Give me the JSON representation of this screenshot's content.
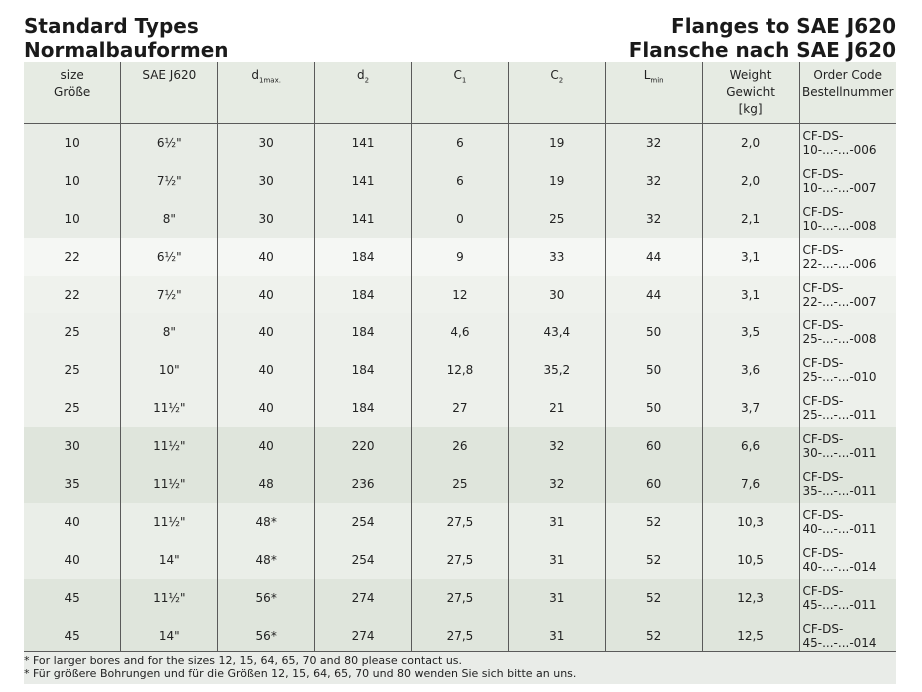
{
  "header": {
    "title_left": [
      "Standard Types",
      "Normalbauformen"
    ],
    "title_right": [
      "Flanges to SAE J620",
      "Flansche nach SAE J620"
    ]
  },
  "table": {
    "columns": [
      {
        "lines": [
          "size",
          "Größe"
        ]
      },
      {
        "lines": [
          "SAE J620"
        ]
      },
      {
        "symbol": "d",
        "subscript": "1max."
      },
      {
        "symbol": "d",
        "subscript": "2"
      },
      {
        "symbol": "C",
        "subscript": "1"
      },
      {
        "symbol": "C",
        "subscript": "2"
      },
      {
        "symbol": "L",
        "subscript": "min"
      },
      {
        "lines": [
          "Weight",
          "Gewicht",
          "[kg]"
        ]
      },
      {
        "lines": [
          "Order Code",
          "Bestellnummer"
        ]
      }
    ],
    "rows": [
      [
        "10",
        "6½\"",
        "30",
        "141",
        "6",
        "19",
        "32",
        "2,0",
        "CF-DS-10-...-...-006"
      ],
      [
        "10",
        "7½\"",
        "30",
        "141",
        "6",
        "19",
        "32",
        "2,0",
        "CF-DS-10-...-...-007"
      ],
      [
        "10",
        "8\"",
        "30",
        "141",
        "0",
        "25",
        "32",
        "2,1",
        "CF-DS-10-...-...-008"
      ],
      [
        "22",
        "6½\"",
        "40",
        "184",
        "9",
        "33",
        "44",
        "3,1",
        "CF-DS-22-...-...-006"
      ],
      [
        "22",
        "7½\"",
        "40",
        "184",
        "12",
        "30",
        "44",
        "3,1",
        "CF-DS-22-...-...-007"
      ],
      [
        "25",
        "8\"",
        "40",
        "184",
        "4,6",
        "43,4",
        "50",
        "3,5",
        "CF-DS-25-...-...-008"
      ],
      [
        "25",
        "10\"",
        "40",
        "184",
        "12,8",
        "35,2",
        "50",
        "3,6",
        "CF-DS-25-...-...-010"
      ],
      [
        "25",
        "11½\"",
        "40",
        "184",
        "27",
        "21",
        "50",
        "3,7",
        "CF-DS-25-...-...-011"
      ],
      [
        "30",
        "11½\"",
        "40",
        "220",
        "26",
        "32",
        "60",
        "6,6",
        "CF-DS-30-...-...-011"
      ],
      [
        "35",
        "11½\"",
        "48",
        "236",
        "25",
        "32",
        "60",
        "7,6",
        "CF-DS-35-...-...-011"
      ],
      [
        "40",
        "11½\"",
        "48*",
        "254",
        "27,5",
        "31",
        "52",
        "10,3",
        "CF-DS-40-...-...-011"
      ],
      [
        "40",
        "14\"",
        "48*",
        "254",
        "27,5",
        "31",
        "52",
        "10,5",
        "CF-DS-40-...-...-014"
      ],
      [
        "45",
        "11½\"",
        "56*",
        "274",
        "27,5",
        "31",
        "52",
        "12,3",
        "CF-DS-45-...-...-011"
      ],
      [
        "45",
        "14\"",
        "56*",
        "274",
        "27,5",
        "31",
        "52",
        "12,5",
        "CF-DS-45-...-...-014"
      ]
    ]
  },
  "footnotes": [
    "* For larger bores and for the sizes 12, 15, 64, 65, 70 and 80 please contact us.",
    "* Für größere Bohrungen und für die Größen 12, 15, 64, 65, 70 und 80 wenden Sie sich bitte an uns."
  ]
}
